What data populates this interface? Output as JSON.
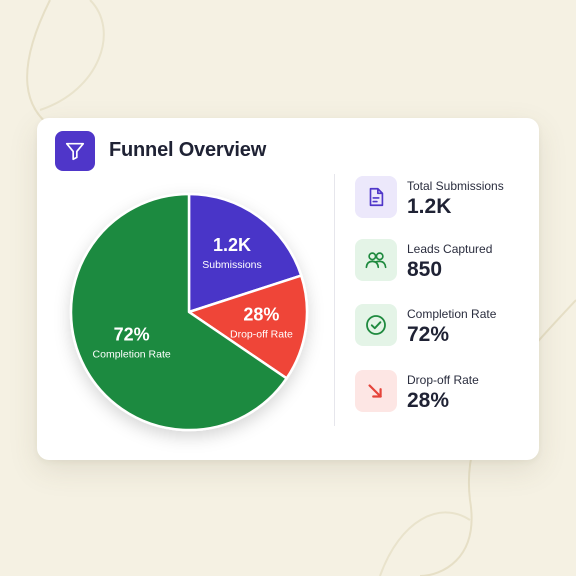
{
  "card": {
    "title": "Funnel Overview",
    "header_icon": "funnel-icon"
  },
  "chart_data": {
    "type": "pie",
    "slices": [
      {
        "value_label": "1.2K",
        "label": "Submissions",
        "percent": 0.2,
        "color": "#4a34c8"
      },
      {
        "value_label": "28%",
        "label": "Drop-off Rate",
        "percent": 0.145,
        "color": "#ef4438"
      },
      {
        "value_label": "72%",
        "label": "Completion Rate",
        "percent": 0.655,
        "color": "#1f8a3f"
      }
    ]
  },
  "stats": [
    {
      "label": "Total Submissions",
      "value": "1.2K",
      "icon": "document-icon",
      "icon_color": "#4f36c9",
      "icon_bg": "#ece8fb"
    },
    {
      "label": "Leads Captured",
      "value": "850",
      "icon": "users-icon",
      "icon_color": "#1f8a3f",
      "icon_bg": "#e4f4e7"
    },
    {
      "label": "Completion Rate",
      "value": "72%",
      "icon": "check-circle-icon",
      "icon_color": "#1f8a3f",
      "icon_bg": "#e4f4e7"
    },
    {
      "label": "Drop-off Rate",
      "value": "28%",
      "icon": "trend-down-icon",
      "icon_color": "#e5443a",
      "icon_bg": "#fde6e4"
    }
  ]
}
